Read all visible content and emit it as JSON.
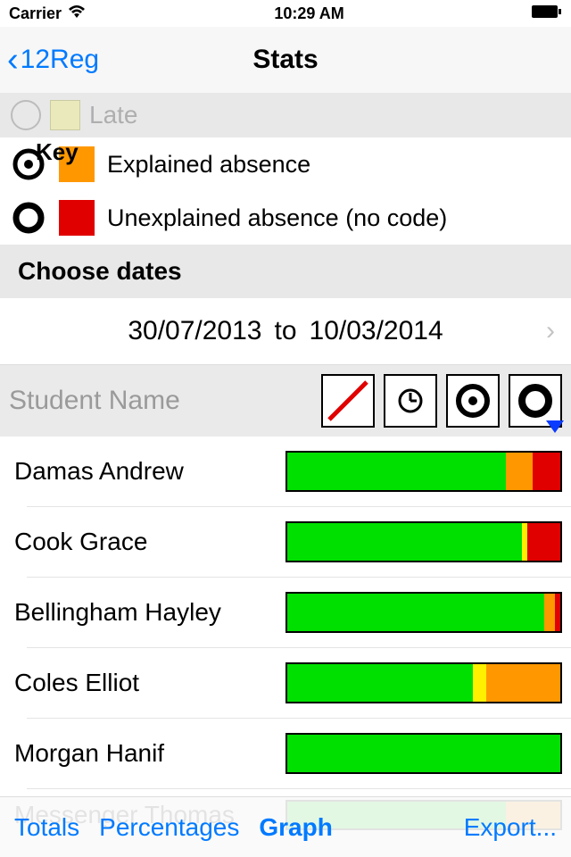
{
  "status": {
    "carrier": "Carrier",
    "time": "10:29 AM"
  },
  "nav": {
    "back_label": "12Reg",
    "title": "Stats"
  },
  "faded_row": {
    "label": "Late",
    "swatch_color": "#e8e8a0"
  },
  "key": {
    "heading": "Key",
    "items": [
      {
        "label": "Explained absence",
        "swatch": "#ff9800",
        "symbol": "circle-dot"
      },
      {
        "label": "Unexplained absence (no code)",
        "swatch": "#e00000",
        "symbol": "circle-open"
      }
    ]
  },
  "dates": {
    "heading": "Choose dates",
    "from": "30/07/2013",
    "to": "10/03/2014",
    "joiner": "to"
  },
  "table": {
    "header_label": "Student Name",
    "colors": {
      "present": "#00e000",
      "late": "#fff000",
      "explained": "#ff9800",
      "unexplained": "#e00000"
    },
    "rows": [
      {
        "name": "Damas Andrew",
        "present": 80,
        "late": 0,
        "explained": 10,
        "unexplained": 10
      },
      {
        "name": "Cook Grace",
        "present": 86,
        "late": 2,
        "explained": 0,
        "unexplained": 12
      },
      {
        "name": "Bellingham Hayley",
        "present": 94,
        "late": 0,
        "explained": 4,
        "unexplained": 2
      },
      {
        "name": "Coles Elliot",
        "present": 68,
        "late": 5,
        "explained": 27,
        "unexplained": 0
      },
      {
        "name": "Morgan Hanif",
        "present": 100,
        "late": 0,
        "explained": 0,
        "unexplained": 0
      },
      {
        "name": "Messenger Thomas",
        "present": 80,
        "late": 0,
        "explained": 20,
        "unexplained": 0
      }
    ]
  },
  "toolbar": {
    "totals": "Totals",
    "percentages": "Percentages",
    "graph": "Graph",
    "export": "Export..."
  }
}
